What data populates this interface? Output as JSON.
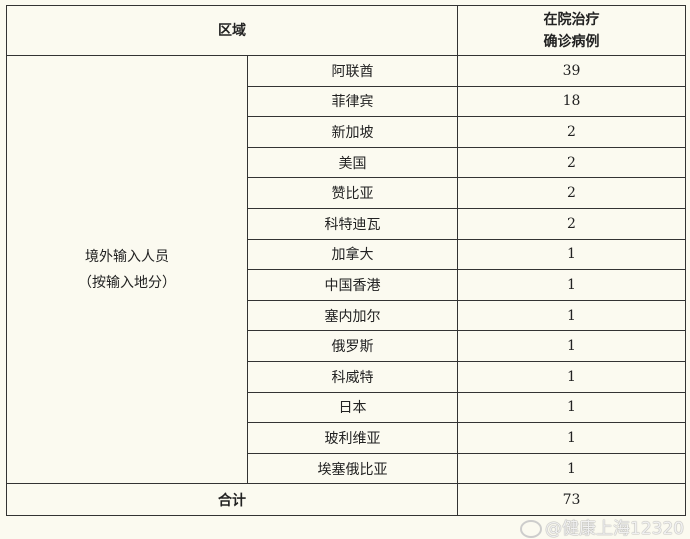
{
  "header": {
    "region": "区域",
    "count_line1": "在院治疗",
    "count_line2": "确诊病例"
  },
  "group": {
    "line1": "境外输入人员",
    "line2": "（按输入地分）"
  },
  "rows": [
    {
      "place": "阿联酋",
      "count": "39"
    },
    {
      "place": "菲律宾",
      "count": "18"
    },
    {
      "place": "新加坡",
      "count": "2"
    },
    {
      "place": "美国",
      "count": "2"
    },
    {
      "place": "赞比亚",
      "count": "2"
    },
    {
      "place": "科特迪瓦",
      "count": "2"
    },
    {
      "place": "加拿大",
      "count": "1"
    },
    {
      "place": "中国香港",
      "count": "1"
    },
    {
      "place": "塞内加尔",
      "count": "1"
    },
    {
      "place": "俄罗斯",
      "count": "1"
    },
    {
      "place": "科威特",
      "count": "1"
    },
    {
      "place": "日本",
      "count": "1"
    },
    {
      "place": "玻利维亚",
      "count": "1"
    },
    {
      "place": "埃塞俄比亚",
      "count": "1"
    }
  ],
  "total": {
    "label": "合计",
    "count": "73"
  },
  "watermark": {
    "text": "@健康上海12320",
    "icon": "weibo-icon"
  }
}
